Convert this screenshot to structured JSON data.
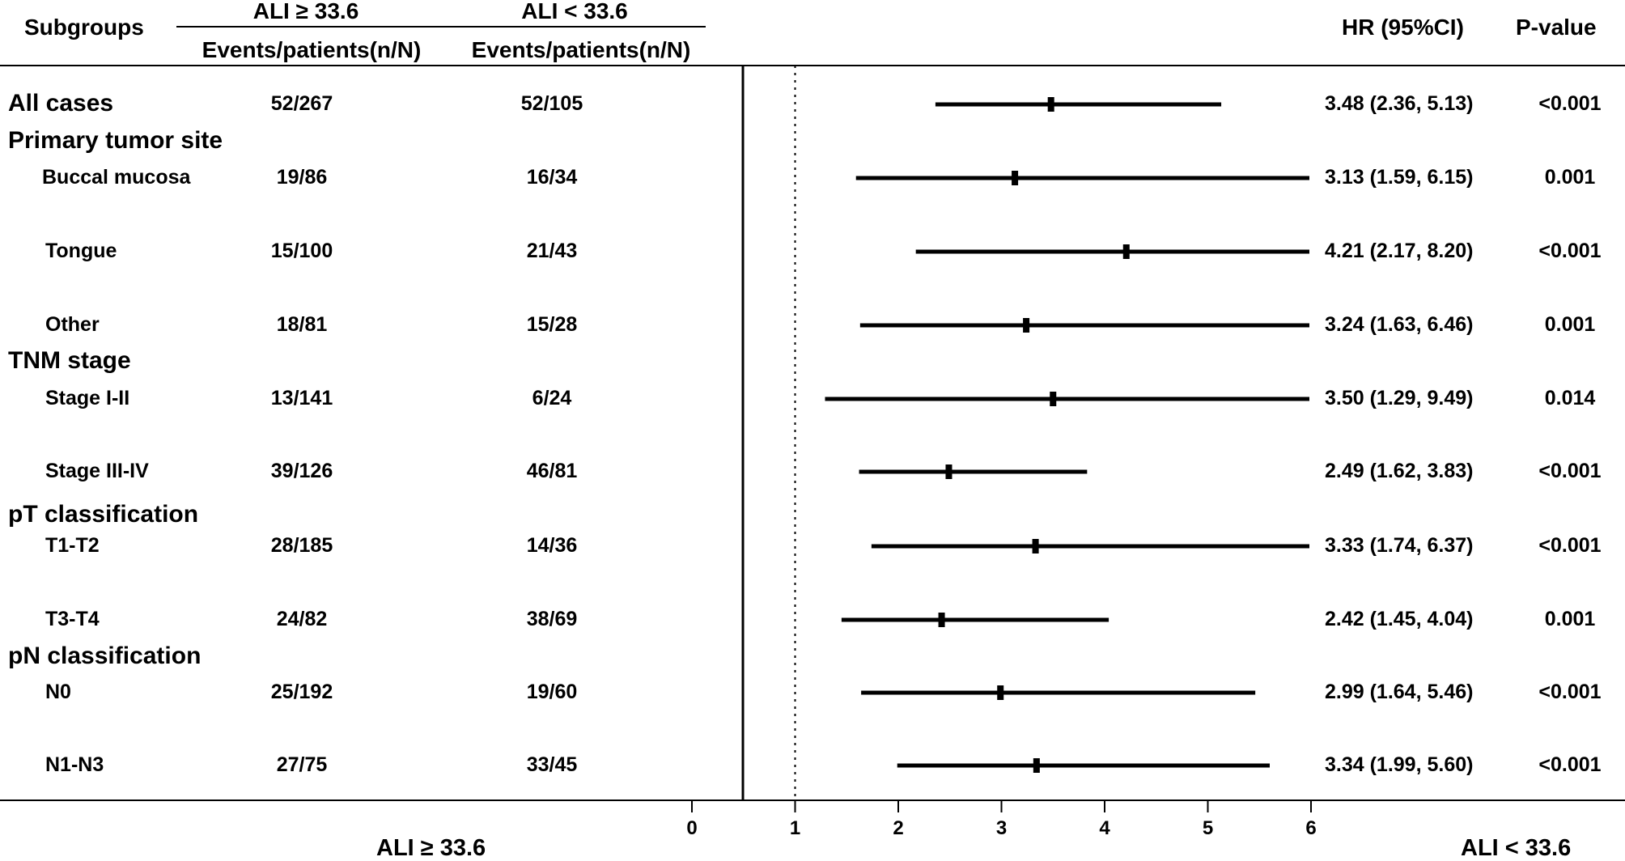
{
  "header": {
    "subgroups": "Subgroups",
    "group_high": "ALI ≥ 33.6",
    "group_low": "ALI < 33.6",
    "events_high": "Events/patients(n/N)",
    "events_low": "Events/patients(n/N)",
    "hr": "HR (95%CI)",
    "pvalue": "P-value"
  },
  "footer": {
    "left": "ALI ≥ 33.6",
    "right": "ALI < 33.6"
  },
  "chart_data": {
    "type": "forest",
    "reference_line": 1,
    "xlim": [
      0,
      6
    ],
    "x_ticks": [
      "0",
      "1",
      "2",
      "3",
      "4",
      "5",
      "6"
    ],
    "rows": [
      {
        "label": "All cases",
        "kind": "group",
        "high": "52/267",
        "low": "52/105",
        "hr": 3.48,
        "lo": 2.36,
        "hi": 5.13,
        "hr_text": "3.48 (2.36, 5.13)",
        "p": "<0.001"
      },
      {
        "label": "Primary tumor site",
        "kind": "group"
      },
      {
        "label": "Buccal mucosa",
        "kind": "sub",
        "high": "19/86",
        "low": "16/34",
        "hr": 3.13,
        "lo": 1.59,
        "hi": 6.15,
        "hr_text": "3.13 (1.59, 6.15)",
        "p": "0.001"
      },
      {
        "label": "Tongue",
        "kind": "sub",
        "high": "15/100",
        "low": "21/43",
        "hr": 4.21,
        "lo": 2.17,
        "hi": 8.2,
        "hr_text": "4.21 (2.17, 8.20)",
        "p": "<0.001"
      },
      {
        "label": "Other",
        "kind": "sub",
        "high": "18/81",
        "low": "15/28",
        "hr": 3.24,
        "lo": 1.63,
        "hi": 6.46,
        "hr_text": "3.24 (1.63, 6.46)",
        "p": "0.001"
      },
      {
        "label": "TNM stage",
        "kind": "group"
      },
      {
        "label": "Stage I-II",
        "kind": "sub",
        "high": "13/141",
        "low": "6/24",
        "hr": 3.5,
        "lo": 1.29,
        "hi": 9.49,
        "hr_text": "3.50 (1.29, 9.49)",
        "p": "0.014"
      },
      {
        "label": "Stage III-IV",
        "kind": "sub",
        "high": "39/126",
        "low": "46/81",
        "hr": 2.49,
        "lo": 1.62,
        "hi": 3.83,
        "hr_text": "2.49 (1.62, 3.83)",
        "p": "<0.001"
      },
      {
        "label": "pT classification",
        "kind": "group"
      },
      {
        "label": "T1-T2",
        "kind": "sub",
        "high": "28/185",
        "low": "14/36",
        "hr": 3.33,
        "lo": 1.74,
        "hi": 6.37,
        "hr_text": "3.33 (1.74, 6.37)",
        "p": "<0.001"
      },
      {
        "label": "T3-T4",
        "kind": "sub",
        "high": "24/82",
        "low": "38/69",
        "hr": 2.42,
        "lo": 1.45,
        "hi": 4.04,
        "hr_text": "2.42 (1.45, 4.04)",
        "p": "0.001"
      },
      {
        "label": "pN classification",
        "kind": "group"
      },
      {
        "label": "N0",
        "kind": "sub",
        "high": "25/192",
        "low": "19/60",
        "hr": 2.99,
        "lo": 1.64,
        "hi": 5.46,
        "hr_text": "2.99 (1.64, 5.46)",
        "p": "<0.001"
      },
      {
        "label": "N1-N3",
        "kind": "sub",
        "high": "27/75",
        "low": "33/45",
        "hr": 3.34,
        "lo": 1.99,
        "hi": 5.6,
        "hr_text": "3.34 (1.99, 5.60)",
        "p": "<0.001"
      }
    ]
  }
}
